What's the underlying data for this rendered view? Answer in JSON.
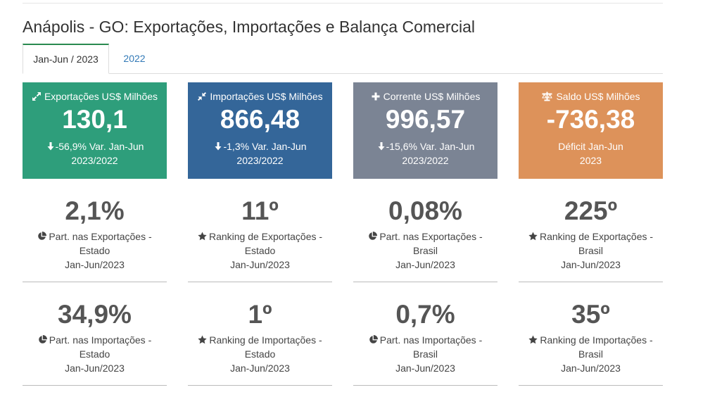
{
  "page": {
    "title": "Anápolis - GO: Exportações, Importações e Balança Comercial"
  },
  "tabs": [
    {
      "label": "Jan-Jun / 2023",
      "active": true
    },
    {
      "label": "2022",
      "active": false
    }
  ],
  "colors": {
    "exports": "#2e9e7b",
    "imports": "#346699",
    "current": "#7b8494",
    "balance": "#dd925a",
    "tab_accent": "#2a8a50",
    "link": "#337ab7"
  },
  "cards": [
    {
      "icon": "expand-arrows-icon",
      "label": "Exportações US$ Milhões",
      "value": "130,1",
      "var_icon": "arrow-down-icon",
      "var_line1": "-56,9% Var. Jan-Jun",
      "var_line2": "2023/2022"
    },
    {
      "icon": "compress-arrows-icon",
      "label": "Importações US$ Milhões",
      "value": "866,48",
      "var_icon": "arrow-down-icon",
      "var_line1": "-1,3% Var. Jan-Jun",
      "var_line2": "2023/2022"
    },
    {
      "icon": "plus-icon",
      "label": "Corrente US$ Milhões",
      "value": "996,57",
      "var_icon": "arrow-down-icon",
      "var_line1": "-15,6% Var. Jan-Jun",
      "var_line2": "2023/2022"
    },
    {
      "icon": "balance-scale-icon",
      "label": "Saldo US$ Milhões",
      "value": "-736,38",
      "var_line1": "Déficit Jan-Jun",
      "var_line2": "2023"
    }
  ],
  "stats_row1": [
    {
      "value": "2,1%",
      "icon": "pie-chart-icon",
      "line1": "Part. nas Exportações -",
      "line2": "Estado",
      "line3": "Jan-Jun/2023"
    },
    {
      "value": "11º",
      "icon": "star-icon",
      "line1": "Ranking de Exportações -",
      "line2": "Estado",
      "line3": "Jan-Jun/2023"
    },
    {
      "value": "0,08%",
      "icon": "pie-chart-icon",
      "line1": "Part. nas Exportações -",
      "line2": "Brasil",
      "line3": "Jan-Jun/2023"
    },
    {
      "value": "225º",
      "icon": "star-icon",
      "line1": "Ranking de Exportações -",
      "line2": "Brasil",
      "line3": "Jan-Jun/2023"
    }
  ],
  "stats_row2": [
    {
      "value": "34,9%",
      "icon": "pie-chart-icon",
      "line1": "Part. nas Importações -",
      "line2": "Estado",
      "line3": "Jan-Jun/2023"
    },
    {
      "value": "1º",
      "icon": "star-icon",
      "line1": "Ranking de Importações -",
      "line2": "Estado",
      "line3": "Jan-Jun/2023"
    },
    {
      "value": "0,7%",
      "icon": "pie-chart-icon",
      "line1": "Part. nas Importações -",
      "line2": "Brasil",
      "line3": "Jan-Jun/2023"
    },
    {
      "value": "35º",
      "icon": "star-icon",
      "line1": "Ranking de Importações -",
      "line2": "Brasil",
      "line3": "Jan-Jun/2023"
    }
  ]
}
